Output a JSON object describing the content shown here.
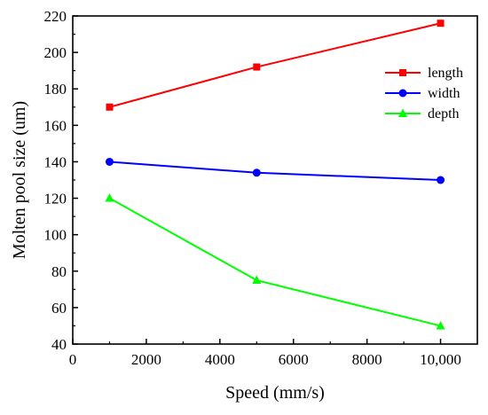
{
  "chart_data": {
    "type": "line",
    "xlabel": "Speed (mm/s)",
    "ylabel": "Molten pool size (um)",
    "xlim": [
      0,
      11000
    ],
    "ylim": [
      40,
      220
    ],
    "x_ticks": [
      0,
      2000,
      4000,
      6000,
      8000,
      10000
    ],
    "x_tick_labels": [
      "0",
      "2000",
      "4000",
      "6000",
      "8000",
      "10,000"
    ],
    "y_ticks": [
      40,
      60,
      80,
      100,
      120,
      140,
      160,
      180,
      200,
      220
    ],
    "y_tick_labels": [
      "40",
      "60",
      "80",
      "100",
      "120",
      "140",
      "160",
      "180",
      "200",
      "220"
    ],
    "grid": false,
    "legend_position": "top-right",
    "x": [
      1000,
      5000,
      10000
    ],
    "series": [
      {
        "name": "length",
        "values": [
          170,
          192,
          216
        ],
        "color": "#ff0000",
        "marker": "square"
      },
      {
        "name": "width",
        "values": [
          140,
          134,
          130
        ],
        "color": "#0000ff",
        "marker": "circle"
      },
      {
        "name": "depth",
        "values": [
          120,
          75,
          50
        ],
        "color": "#00ff00",
        "marker": "triangle"
      }
    ]
  }
}
